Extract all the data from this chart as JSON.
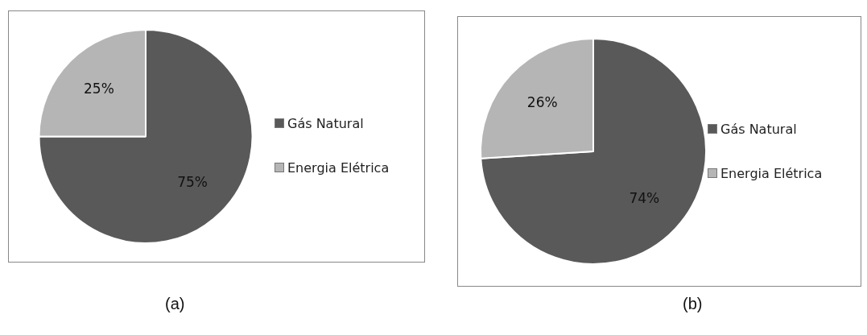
{
  "chart_data": [
    {
      "type": "pie",
      "categories": [
        "Gás Natural",
        "Energia Elétrica"
      ],
      "values": [
        75,
        25
      ],
      "value_labels": [
        "75%",
        "25%"
      ],
      "colors": [
        "#595959",
        "#b5b5b5"
      ],
      "legend": "right",
      "annotations": [
        "(a)"
      ]
    },
    {
      "type": "pie",
      "categories": [
        "Gás Natural",
        "Energia Elétrica"
      ],
      "values": [
        74,
        26
      ],
      "value_labels": [
        "74%",
        "26%"
      ],
      "colors": [
        "#595959",
        "#b5b5b5"
      ],
      "legend": "right",
      "annotations": [
        "(b)"
      ]
    }
  ]
}
